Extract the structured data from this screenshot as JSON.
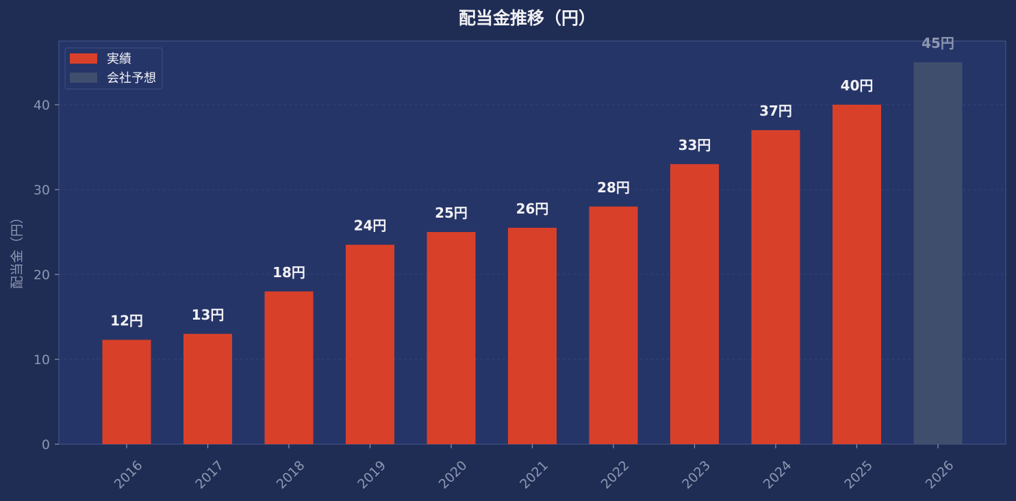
{
  "chart_data": {
    "type": "bar",
    "title": "配当金推移（円）",
    "ylabel": "配当金（円）",
    "xlabel": "",
    "ylim": [
      0,
      47.5
    ],
    "yticks": [
      0,
      10,
      20,
      30,
      40
    ],
    "grid": true,
    "legend_placement": "top-left",
    "categories": [
      "2016",
      "2017",
      "2018",
      "2019",
      "2020",
      "2021",
      "2022",
      "2023",
      "2024",
      "2025",
      "2026"
    ],
    "values": [
      12.3,
      13,
      18,
      23.5,
      25,
      25.5,
      28,
      33,
      37,
      40,
      45
    ],
    "value_labels": [
      "12円",
      "13円",
      "18円",
      "24円",
      "25円",
      "26円",
      "28円",
      "33円",
      "37円",
      "40円",
      "45円"
    ],
    "series_kind": [
      "実績",
      "実績",
      "実績",
      "実績",
      "実績",
      "実績",
      "実績",
      "実績",
      "実績",
      "実績",
      "会社予想"
    ],
    "legend": [
      {
        "name": "実績",
        "color": "#d9402a"
      },
      {
        "name": "会社予想",
        "color": "#3f4e6c"
      }
    ]
  },
  "colors": {
    "background": "#1f2d55",
    "plot_background": "#263568",
    "plot_border": "#3c4c7c",
    "grid": "#34447a",
    "actual_bar": "#d9402a",
    "forecast_bar": "#3f4e6c",
    "title_text": "#f2f2f5",
    "label_text": "#f2f2f5",
    "forecast_label_text": "#8d97b0",
    "tick_text": "#8d97b0"
  }
}
